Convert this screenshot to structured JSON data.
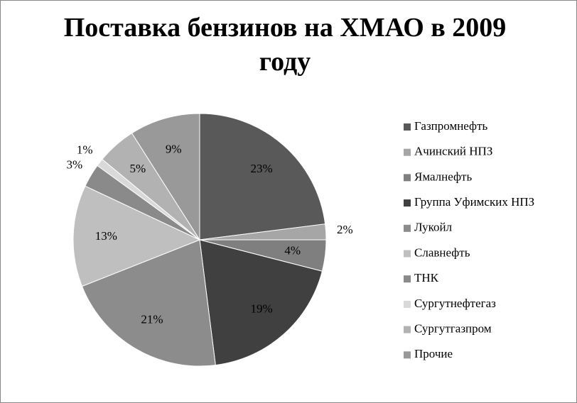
{
  "chart_data": {
    "type": "pie",
    "title": "Поставка бензинов на ХМАО в 2009 году",
    "categories": [
      "Газпромнефть",
      "Ачинский НПЗ",
      "Ямалнефть",
      "Группа Уфимских НПЗ",
      "Лукойл",
      "Славнефть",
      "ТНК",
      "Сургутнефтегаз",
      "Сургутгазпром",
      "Прочие"
    ],
    "values": [
      23,
      2,
      4,
      19,
      21,
      13,
      3,
      1,
      5,
      9
    ],
    "value_labels": [
      "23%",
      "2%",
      "4%",
      "19%",
      "21%",
      "13%",
      "3%",
      "1%",
      "5%",
      "9%"
    ],
    "colors": [
      "#595959",
      "#a6a6a6",
      "#7f7f7f",
      "#404040",
      "#8c8c8c",
      "#bfbfbf",
      "#8a8a8a",
      "#d9d9d9",
      "#b2b2b2",
      "#999999"
    ],
    "legend": "right"
  }
}
